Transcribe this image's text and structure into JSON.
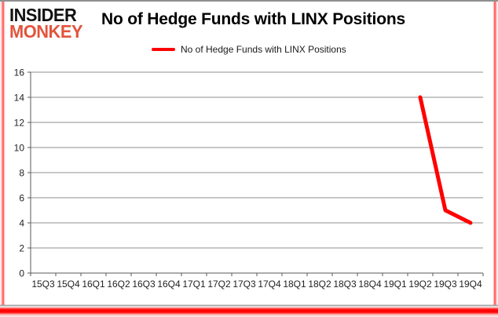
{
  "header": {
    "logo_line1": "INSIDER",
    "logo_line2": "MONKEY",
    "title": "No of Hedge Funds with LINX Positions"
  },
  "legend": {
    "label": "No of Hedge Funds with LINX Positions",
    "marker_color": "#ff0000"
  },
  "colors": {
    "logo_accent": "#e2543b",
    "series_red": "#ff0000",
    "gridline_gray": "#8f8f8f",
    "axis_gray": "#595959"
  },
  "chart_data": {
    "type": "line",
    "title": "No of Hedge Funds with LINX Positions",
    "categories": [
      "15Q3",
      "15Q4",
      "16Q1",
      "16Q2",
      "16Q3",
      "16Q4",
      "17Q1",
      "17Q2",
      "17Q3",
      "17Q4",
      "18Q1",
      "18Q2",
      "18Q3",
      "18Q4",
      "19Q1",
      "19Q2",
      "19Q3",
      "19Q4"
    ],
    "series": [
      {
        "name": "No of Hedge Funds with LINX Positions",
        "color": "#ff0000",
        "values": [
          null,
          null,
          null,
          null,
          null,
          null,
          null,
          null,
          null,
          null,
          null,
          null,
          null,
          null,
          null,
          14,
          5,
          4
        ]
      }
    ],
    "xlabel": "",
    "ylabel": "",
    "ylim": [
      0,
      16
    ],
    "ytick_step": 2,
    "grid": "horizontal",
    "legend_position": "top"
  }
}
